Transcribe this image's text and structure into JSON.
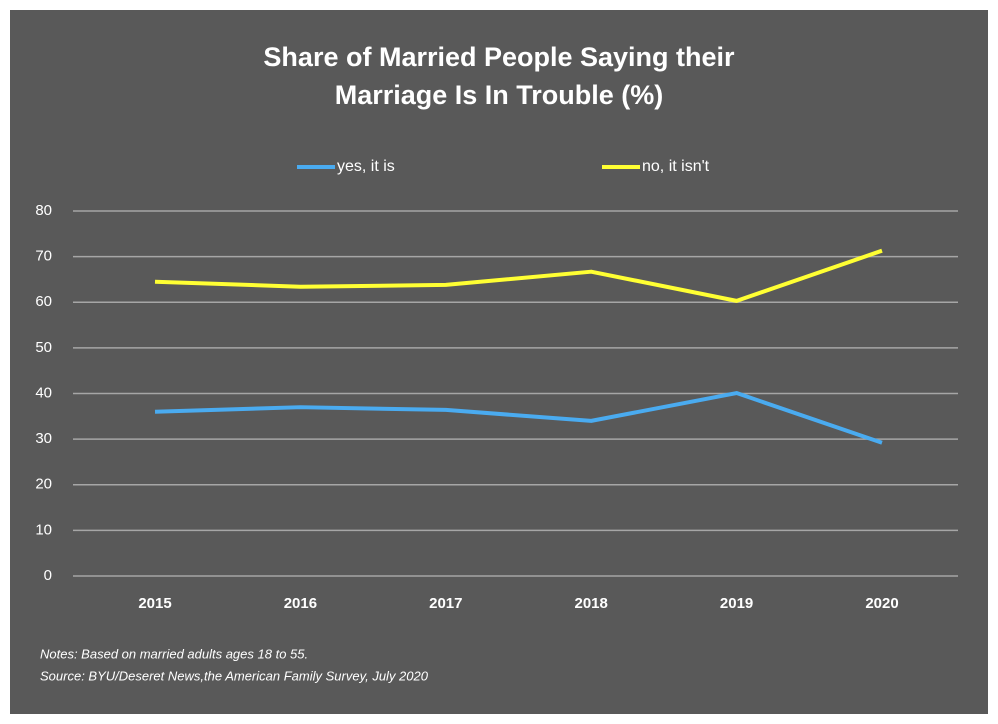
{
  "chart_data": {
    "type": "line",
    "title": "Share of Married People Saying their Marriage Is In Trouble (%)",
    "categories": [
      "2015",
      "2016",
      "2017",
      "2018",
      "2019",
      "2020"
    ],
    "series": [
      {
        "name": "yes, it is",
        "color": "#4aabf0",
        "values": [
          36,
          37,
          36.4,
          34,
          40.1,
          29.2
        ]
      },
      {
        "name": "no, it isn't",
        "color": "#ffff33",
        "values": [
          64.5,
          63.4,
          63.8,
          66.7,
          60.3,
          71.3
        ]
      }
    ],
    "ylim": [
      0,
      80
    ],
    "yticks": [
      0,
      10,
      20,
      30,
      40,
      50,
      60,
      70,
      80
    ],
    "grid": true,
    "notes": [
      "Notes: Based on married adults ages 18 to 55.",
      "Source: BYU/Deseret News,the American Family Survey, July 2020"
    ]
  }
}
